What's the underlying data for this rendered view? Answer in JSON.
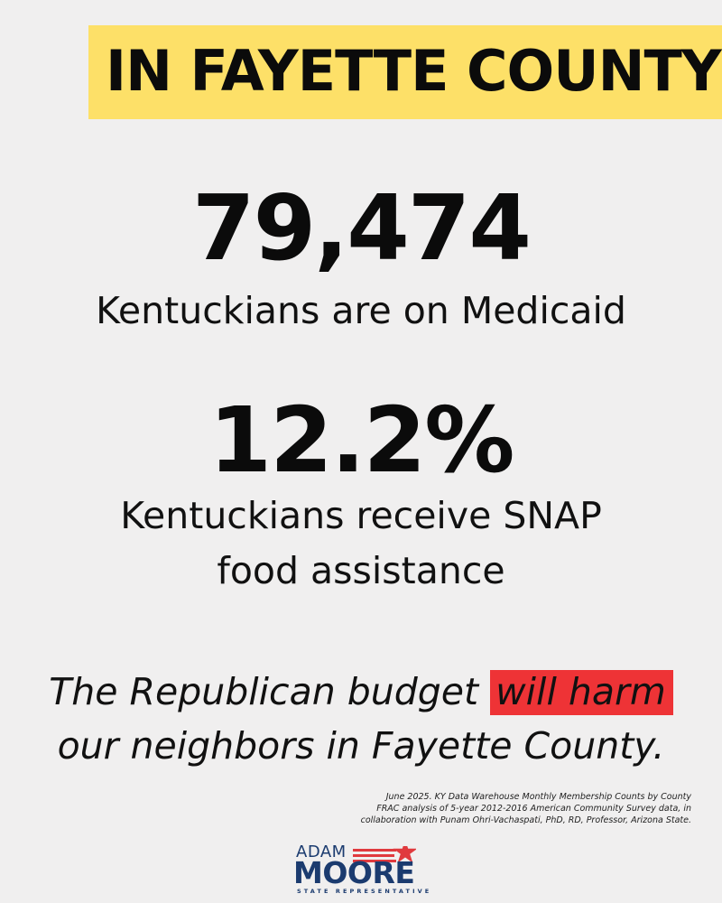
{
  "header": {
    "title": "IN FAYETTE COUNTY"
  },
  "stats": [
    {
      "value": "79,474",
      "caption_lines": [
        "Kentuckians are on Medicaid"
      ]
    },
    {
      "value": "12.2%",
      "caption_lines": [
        "Kentuckians receive SNAP",
        "food assistance"
      ]
    }
  ],
  "message": {
    "line1_before": "The Republican budget ",
    "line1_highlight": "will harm",
    "line2": "our neighbors in Fayette County."
  },
  "sources": [
    "June 2025. KY Data Warehouse Monthly Membership Counts by County",
    "FRAC analysis of 5-year 2012-2016 American Community Survey data, in",
    "collaboration with Punam Ohri-Vachaspati, PhD, RD, Professor, Arizona State."
  ],
  "logo": {
    "first_name": "ADAM",
    "last_name": "MOORE",
    "subtitle": "STATE REPRESENTATIVE",
    "icon": "star-icon"
  },
  "colors": {
    "background": "#f0efef",
    "banner": "#fde068",
    "highlight": "#ee3336",
    "logo_navy": "#1b3b6f",
    "logo_red": "#e03a3e"
  }
}
